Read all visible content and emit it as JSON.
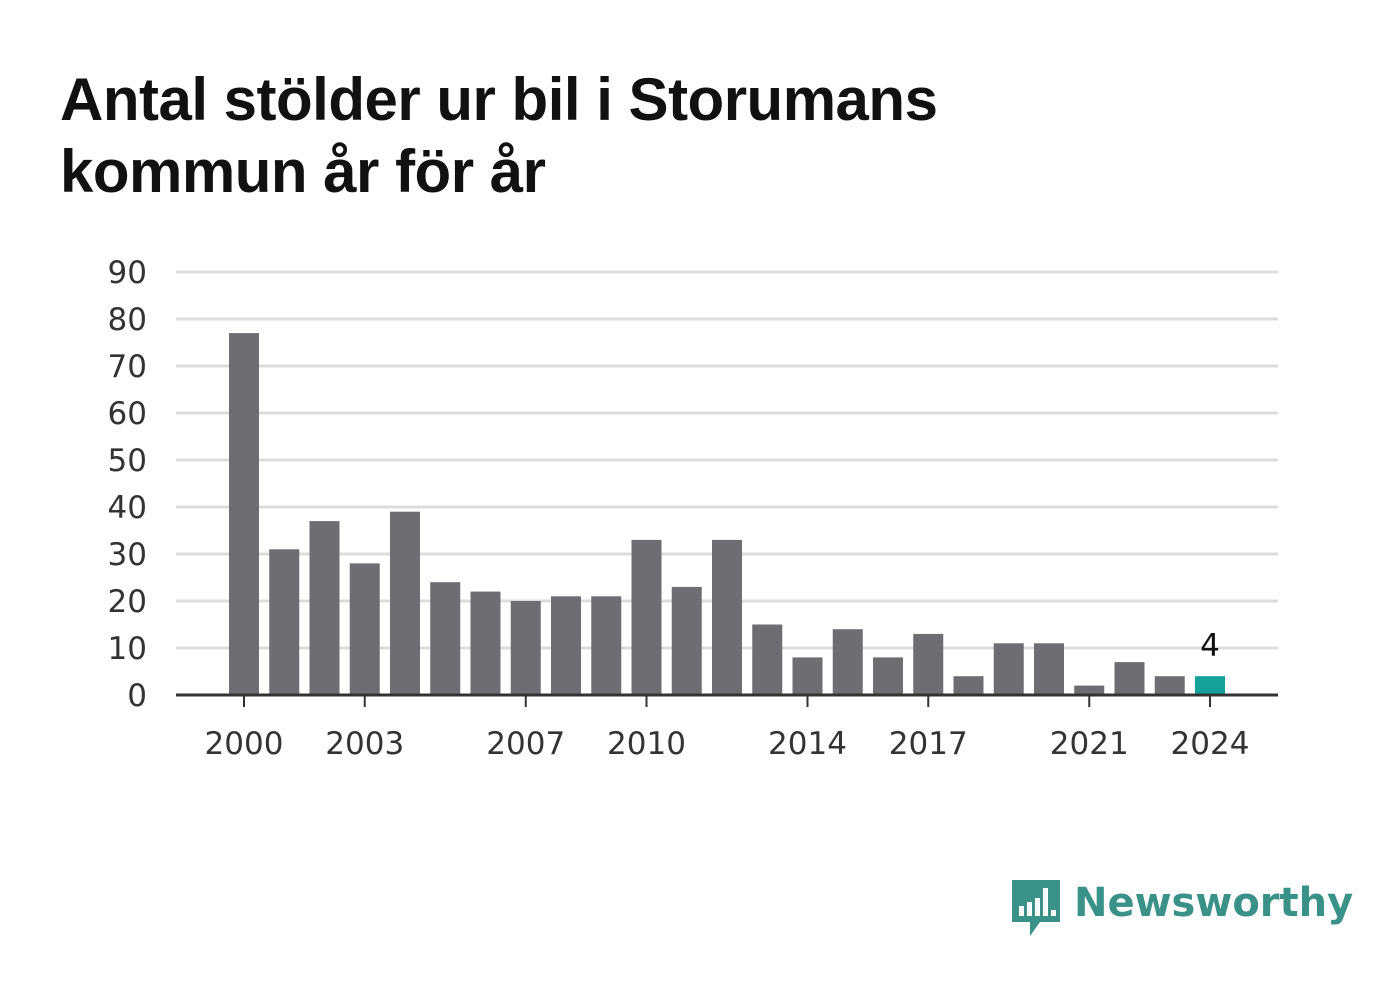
{
  "title": "Antal stölder ur bil i Storumans kommun år för år",
  "brand": {
    "name": "Newsworthy",
    "icon": "newsworthy-logo-icon",
    "color": "#3a9188"
  },
  "colors": {
    "bar": "#6e6d72",
    "highlight": "#13a19a",
    "grid": "#dcdcdc",
    "axis": "#333333",
    "text": "#333333"
  },
  "chart_data": {
    "type": "bar",
    "title": "Antal stölder ur bil i Storumans kommun år för år",
    "xlabel": "",
    "ylabel": "",
    "x": [
      2000,
      2001,
      2002,
      2003,
      2004,
      2005,
      2006,
      2007,
      2008,
      2009,
      2010,
      2011,
      2012,
      2013,
      2014,
      2015,
      2016,
      2017,
      2018,
      2019,
      2020,
      2021,
      2022,
      2023,
      2024
    ],
    "values": [
      77,
      31,
      37,
      28,
      39,
      24,
      22,
      20,
      21,
      21,
      33,
      23,
      33,
      15,
      8,
      14,
      8,
      13,
      4,
      11,
      11,
      2,
      7,
      4,
      4
    ],
    "ylim": [
      0,
      90
    ],
    "yticks": [
      0,
      10,
      20,
      30,
      40,
      50,
      60,
      70,
      80,
      90
    ],
    "xticks": [
      2000,
      2003,
      2007,
      2010,
      2014,
      2017,
      2021,
      2024
    ],
    "highlight": {
      "year": 2024,
      "label": "4"
    },
    "grid": true
  }
}
